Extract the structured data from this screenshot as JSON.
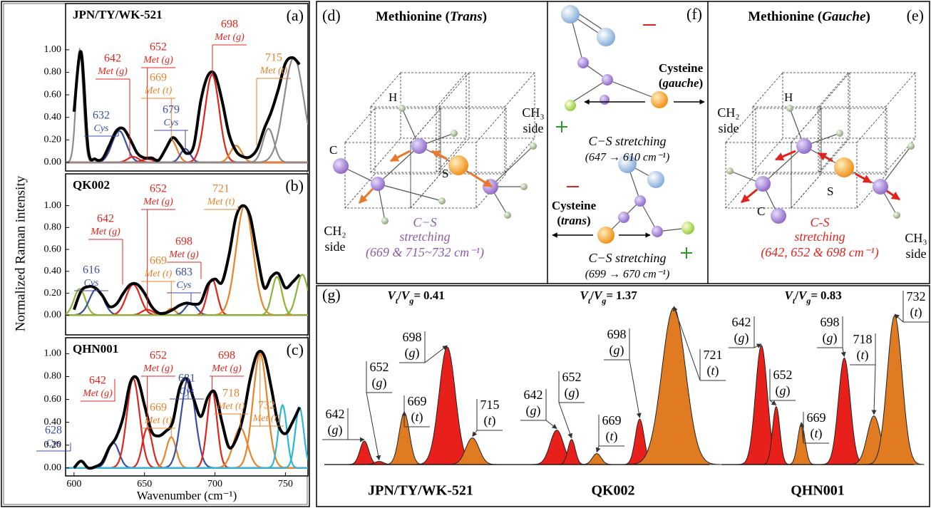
{
  "chart_data": [
    {
      "type": "line",
      "panel": "(a)",
      "title": "JPN/TY/WK-521",
      "xlim": [
        594,
        766
      ],
      "ylim": [
        -0.076,
        1.41
      ],
      "yticks": [
        {
          "value": 0,
          "label": "0.00"
        },
        {
          "value": 0.2,
          "label": "0.20"
        },
        {
          "value": 0.4,
          "label": "0.40"
        },
        {
          "value": 0.6,
          "label": "0.60"
        },
        {
          "value": 0.8,
          "label": "0.80"
        },
        {
          "value": 1,
          "label": "1.00"
        }
      ],
      "x": [
        600,
        605,
        610,
        615,
        620,
        625,
        630,
        635,
        640,
        645,
        650,
        655,
        660,
        665,
        670,
        675,
        680,
        685,
        690,
        695,
        700,
        705,
        710,
        715,
        720,
        725,
        730,
        735,
        740,
        745,
        750,
        755,
        760
      ],
      "series": [
        {
          "color": "#000000",
          "values": [
            0.45,
            0.98,
            0.12,
            0.03,
            0.03,
            0.15,
            0.28,
            0.3,
            0.2,
            0.08,
            0.04,
            0.04,
            0.02,
            0.12,
            0.22,
            0.16,
            0.08,
            0.15,
            0.55,
            0.77,
            0.78,
            0.55,
            0.25,
            0.1,
            0.05,
            0.05,
            0.12,
            0.3,
            0.45,
            0.65,
            0.88,
            0.93,
            0.87
          ]
        }
      ],
      "components": [
        {
          "center": 604,
          "height": 1.0,
          "width": 2.5,
          "color": "#8c8c8c"
        },
        {
          "center": 632,
          "tag": "Cys",
          "height": 0.28,
          "width": 5,
          "color": "#3b4ea6"
        },
        {
          "center": 642,
          "tag": "Met (g)",
          "height": 0.05,
          "width": 4,
          "color": "#e0241c"
        },
        {
          "center": 652,
          "tag": "Met (g)",
          "height": 0.03,
          "width": 4,
          "color": "#e0241c"
        },
        {
          "center": 669,
          "tag": "Met (t)",
          "height": 0.2,
          "width": 4,
          "color": "#e8832a"
        },
        {
          "center": 679,
          "tag": "Cys",
          "height": 0.12,
          "width": 3.5,
          "color": "#3b4ea6"
        },
        {
          "center": 698,
          "tag": "Met (g)",
          "height": 0.78,
          "width": 5,
          "color": "#e0241c"
        },
        {
          "center": 715,
          "tag": "Met (t)",
          "height": 0.15,
          "width": 4,
          "color": "#e8832a"
        },
        {
          "center": 738,
          "height": 0.3,
          "width": 4,
          "color": "#8c8c8c"
        },
        {
          "center": 756,
          "height": 0.93,
          "width": 7,
          "color": "#8c8c8c"
        }
      ]
    },
    {
      "type": "line",
      "panel": "(b)",
      "title": "QK002",
      "y_label": "Normalized Raman intensity",
      "xlim": [
        594,
        766
      ],
      "ylim": [
        -0.18,
        1.29
      ],
      "yticks": [
        {
          "value": 0,
          "label": "0.00"
        },
        {
          "value": 0.2,
          "label": "0.20"
        },
        {
          "value": 0.4,
          "label": "0.40"
        },
        {
          "value": 0.6,
          "label": "0.60"
        },
        {
          "value": 0.8,
          "label": "0.80"
        },
        {
          "value": 1,
          "label": "1.00"
        }
      ],
      "x": [
        600,
        605,
        610,
        615,
        620,
        625,
        630,
        635,
        640,
        645,
        650,
        655,
        660,
        665,
        670,
        675,
        680,
        685,
        690,
        695,
        700,
        705,
        710,
        715,
        720,
        725,
        730,
        735,
        740,
        745,
        750,
        755,
        760
      ],
      "series": [
        {
          "color": "#000000",
          "values": [
            0.05,
            0.22,
            0.26,
            0.25,
            0.18,
            0.08,
            0.1,
            0.2,
            0.28,
            0.28,
            0.2,
            0.08,
            0.02,
            0.02,
            0.05,
            0.09,
            0.11,
            0.1,
            0.12,
            0.28,
            0.33,
            0.3,
            0.55,
            0.9,
            1.0,
            0.9,
            0.55,
            0.25,
            0.35,
            0.38,
            0.25,
            0.3,
            0.37
          ]
        }
      ],
      "components": [
        {
          "center": 604,
          "height": 0.24,
          "width": 4,
          "color": "#8cb43c"
        },
        {
          "center": 616,
          "tag": "Cys",
          "height": 0.24,
          "width": 5,
          "color": "#3b4ea6"
        },
        {
          "center": 642,
          "tag": "Met (g)",
          "height": 0.28,
          "width": 5,
          "color": "#e0241c"
        },
        {
          "center": 652,
          "tag": "Met (g)",
          "height": 0.05,
          "width": 4,
          "color": "#e0241c"
        },
        {
          "center": 669,
          "tag": "Met (t)",
          "height": 0.06,
          "width": 3,
          "color": "#e8832a"
        },
        {
          "center": 683,
          "tag": "Cys",
          "height": 0.11,
          "width": 4,
          "color": "#3b4ea6"
        },
        {
          "center": 698,
          "tag": "Met (g)",
          "height": 0.33,
          "width": 3.5,
          "color": "#e0241c"
        },
        {
          "center": 721,
          "tag": "Met (t)",
          "height": 1.0,
          "width": 6,
          "color": "#e8832a"
        },
        {
          "center": 744,
          "height": 0.35,
          "width": 3.5,
          "color": "#8cb43c"
        },
        {
          "center": 762,
          "height": 0.37,
          "width": 4,
          "color": "#8cb43c"
        }
      ]
    },
    {
      "type": "line",
      "panel": "(c)",
      "title": "QHN001",
      "x_label": "Wavenumber (cm⁻¹)",
      "xlim": [
        594,
        766
      ],
      "ylim": [
        -0.07,
        1.14
      ],
      "xticks": [
        600,
        650,
        700,
        750
      ],
      "yticks": [
        {
          "value": 0,
          "label": "0.00"
        },
        {
          "value": 0.2,
          "label": "0.20"
        },
        {
          "value": 0.4,
          "label": "0.40"
        },
        {
          "value": 0.6,
          "label": "0.60"
        },
        {
          "value": 0.8,
          "label": "0.80"
        },
        {
          "value": 1,
          "label": "1.00"
        }
      ],
      "x": [
        600,
        605,
        610,
        615,
        620,
        625,
        630,
        635,
        640,
        645,
        650,
        655,
        660,
        665,
        670,
        675,
        680,
        685,
        690,
        695,
        700,
        705,
        710,
        715,
        720,
        725,
        730,
        735,
        740,
        745,
        750,
        755,
        760
      ],
      "series": [
        {
          "color": "#000000",
          "values": [
            0.0,
            0.06,
            0.0,
            0.01,
            0.05,
            0.18,
            0.27,
            0.45,
            0.75,
            0.78,
            0.55,
            0.32,
            0.28,
            0.32,
            0.4,
            0.7,
            0.78,
            0.6,
            0.45,
            0.62,
            0.66,
            0.4,
            0.18,
            0.25,
            0.45,
            0.78,
            1.0,
            0.98,
            0.7,
            0.38,
            0.3,
            0.4,
            0.53
          ]
        }
      ],
      "components": [
        {
          "center": 628,
          "tag": "Cys",
          "height": 0.22,
          "width": 4,
          "color": "#3b4ea6"
        },
        {
          "center": 642,
          "tag": "Met (g)",
          "height": 0.78,
          "width": 4.5,
          "color": "#e0241c"
        },
        {
          "center": 652,
          "tag": "Met (g)",
          "height": 0.35,
          "width": 3.5,
          "color": "#e0241c"
        },
        {
          "center": 669,
          "tag": "Met (t)",
          "height": 0.27,
          "width": 3.5,
          "color": "#e8832a"
        },
        {
          "center": 681,
          "tag": "Cys",
          "height": 0.78,
          "width": 5,
          "color": "#3b4ea6"
        },
        {
          "center": 698,
          "tag": "Met (g)",
          "height": 0.68,
          "width": 3.5,
          "color": "#e0241c"
        },
        {
          "center": 718,
          "tag": "Met (t)",
          "height": 0.35,
          "width": 5,
          "color": "#e8832a"
        },
        {
          "center": 732,
          "tag": "Met (t)",
          "height": 1.0,
          "width": 5,
          "color": "#e8832a"
        },
        {
          "center": 748,
          "height": 0.55,
          "width": 3,
          "color": "#2cb6d8"
        },
        {
          "center": 760,
          "height": 0.53,
          "width": 3,
          "color": "#2cb6d8"
        }
      ]
    },
    {
      "type": "peaks",
      "panel": "(g)",
      "xlim": [
        615,
        745
      ],
      "samples": [
        {
          "name": "JPN/TY/WK-521",
          "ratio_label": "Vt/Vg=",
          "ratio": 0.41,
          "peaks": [
            {
              "center": 642,
              "tag": "(g)",
              "height": 0.15,
              "width": 3,
              "color": "#e8201c"
            },
            {
              "center": 652,
              "tag": "(g)",
              "height": 0.02,
              "width": 3,
              "color": "#e8201c"
            },
            {
              "center": 669,
              "tag": "(t)",
              "height": 0.33,
              "width": 3.5,
              "color": "#e07b22"
            },
            {
              "center": 698,
              "tag": "(g)",
              "height": 0.75,
              "width": 5.5,
              "color": "#e8201c"
            },
            {
              "center": 715,
              "tag": "(t)",
              "height": 0.17,
              "width": 4.5,
              "color": "#e07b22"
            }
          ]
        },
        {
          "name": "QK002",
          "ratio_label": "Vt/Vg=",
          "ratio": 1.37,
          "peaks": [
            {
              "center": 642,
              "tag": "(g)",
              "height": 0.22,
              "width": 4.5,
              "color": "#e8201c"
            },
            {
              "center": 652,
              "tag": "(g)",
              "height": 0.16,
              "width": 2.5,
              "color": "#e8201c"
            },
            {
              "center": 669,
              "tag": "(t)",
              "height": 0.07,
              "width": 3,
              "color": "#e07b22"
            },
            {
              "center": 698,
              "tag": "(g)",
              "height": 0.29,
              "width": 3,
              "color": "#e8201c"
            },
            {
              "center": 721,
              "tag": "(t)",
              "height": 1.0,
              "width": 8,
              "color": "#e07b22"
            }
          ]
        },
        {
          "name": "QHN001",
          "ratio_label": "Vt/Vg=",
          "ratio": 0.83,
          "peaks": [
            {
              "center": 642,
              "tag": "(g)",
              "height": 0.76,
              "width": 4,
              "color": "#e8201c"
            },
            {
              "center": 652,
              "tag": "(g)",
              "height": 0.37,
              "width": 2.5,
              "color": "#e8201c"
            },
            {
              "center": 669,
              "tag": "(t)",
              "height": 0.26,
              "width": 2.5,
              "color": "#e07b22"
            },
            {
              "center": 698,
              "tag": "(g)",
              "height": 0.68,
              "width": 4,
              "color": "#e8201c"
            },
            {
              "center": 718,
              "tag": "(t)",
              "height": 0.31,
              "width": 4.5,
              "color": "#e07b22"
            },
            {
              "center": 732,
              "tag": "(t)",
              "height": 0.95,
              "width": 5,
              "color": "#e07b22"
            }
          ]
        }
      ]
    }
  ],
  "diagrams": {
    "d": {
      "letter": "(d)",
      "title": "Methionine (Trans)",
      "h": "H",
      "c": "C",
      "s": "S",
      "ch3": "CH₃",
      "ch3_side": "side",
      "ch2": "CH₂",
      "ch2_side": "side",
      "caption": [
        "C−S",
        "stretching",
        "(669 & 715~732 cm⁻¹)"
      ]
    },
    "e": {
      "letter": "(e)",
      "title": "Methionine (Gauche)",
      "h": "H",
      "c": "C",
      "s": "S",
      "ch3": "CH₃",
      "ch3_side": "side",
      "ch2": "CH₂",
      "ch2_side": "side",
      "caption": [
        "C-S",
        "stretching",
        "(642, 652 & 698 cm⁻¹)"
      ]
    },
    "f": {
      "letter": "(f)",
      "gauche_name": [
        "Cysteine",
        "(gauche)"
      ],
      "gauche_caption": [
        "C−S stretching",
        "(647 → 610 cm⁻¹)"
      ],
      "trans_name": [
        "Cysteine",
        "(trans)"
      ],
      "trans_caption": [
        "C−S stretching",
        "(699 → 670 cm⁻¹)"
      ]
    }
  }
}
